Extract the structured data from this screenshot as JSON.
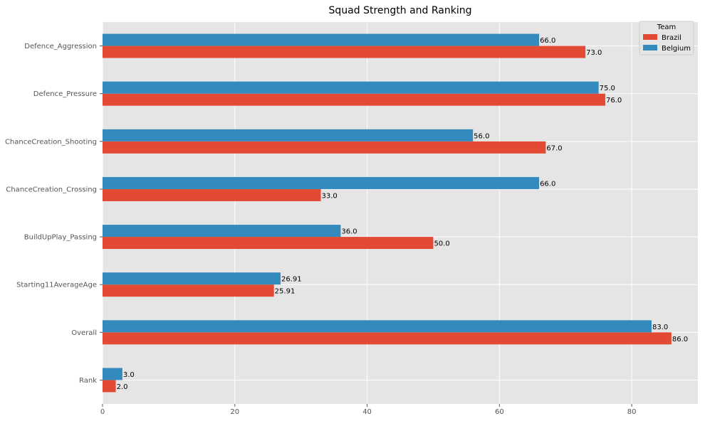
{
  "chart_data": {
    "type": "bar",
    "orientation": "horizontal",
    "title": "Squad Strength and Ranking",
    "xlabel": "",
    "ylabel": "",
    "xlim": [
      0,
      90
    ],
    "x_ticks": [
      0,
      20,
      40,
      60,
      80
    ],
    "x_tick_labels": [
      "0",
      "20",
      "40",
      "60",
      "80"
    ],
    "categories": [
      "Rank",
      "Overall",
      "Starting11AverageAge",
      "BuildUpPlay_Passing",
      "ChanceCreation_Crossing",
      "ChanceCreation_Shooting",
      "Defence_Pressure",
      "Defence_Aggression"
    ],
    "series": [
      {
        "name": "Brazil",
        "color": "#E24A33",
        "values": [
          2.0,
          86.0,
          25.91,
          50.0,
          33.0,
          67.0,
          76.0,
          73.0
        ],
        "value_labels": [
          "2.0",
          "86.0",
          "25.91",
          "50.0",
          "33.0",
          "67.0",
          "76.0",
          "73.0"
        ]
      },
      {
        "name": "Belgium",
        "color": "#348ABD",
        "values": [
          3.0,
          83.0,
          26.91,
          36.0,
          66.0,
          56.0,
          75.0,
          66.0
        ],
        "value_labels": [
          "3.0",
          "83.0",
          "26.91",
          "36.0",
          "66.0",
          "56.0",
          "75.0",
          "66.0"
        ]
      }
    ],
    "legend": {
      "title": "Team",
      "position": "top-right"
    },
    "grid": true,
    "background": "#E5E5E5"
  }
}
